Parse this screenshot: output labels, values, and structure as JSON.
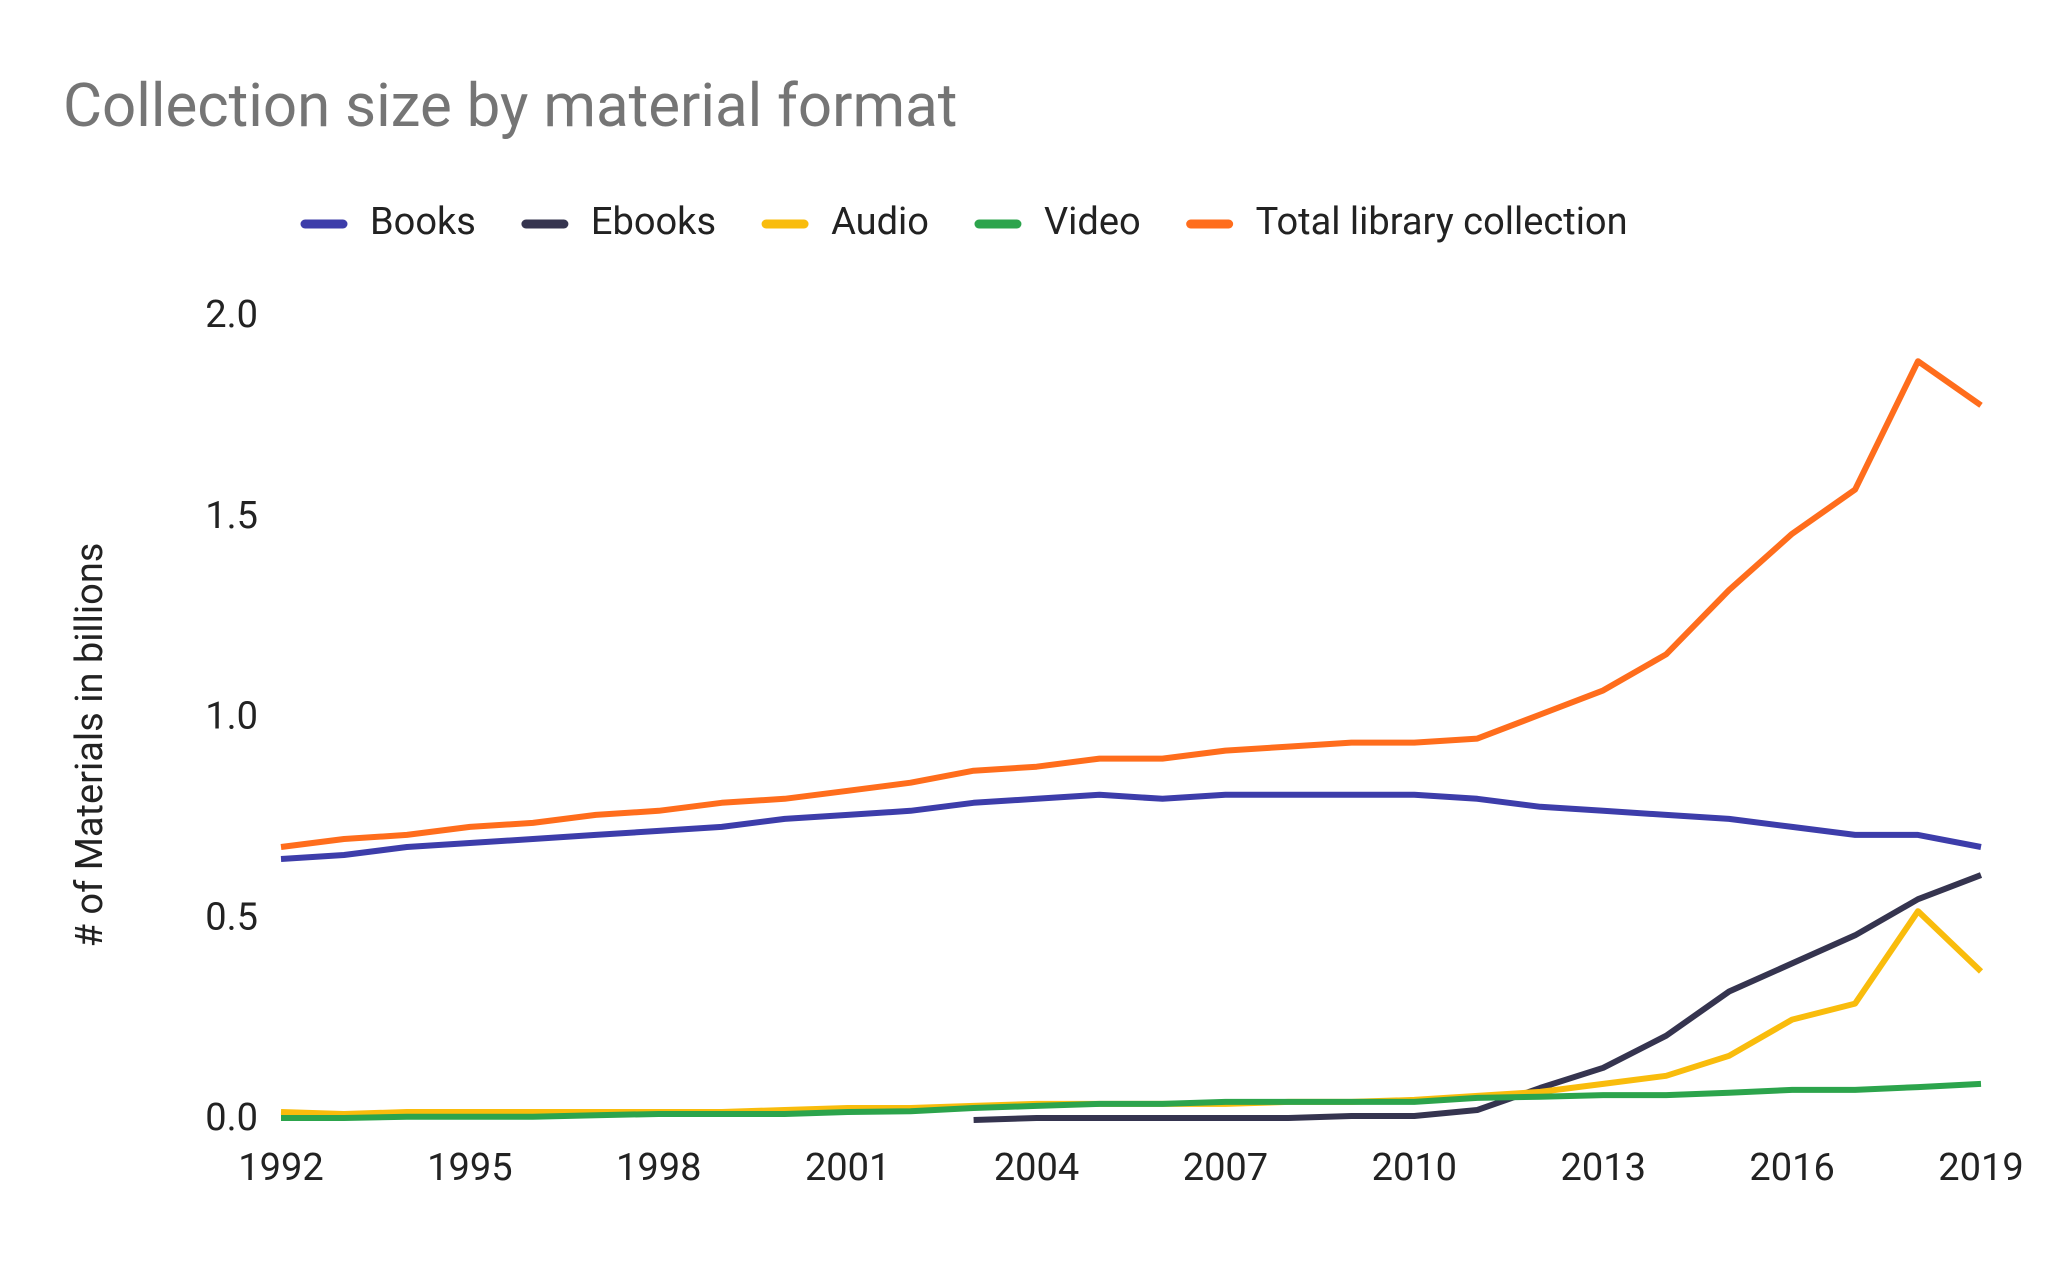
{
  "chart_data": {
    "type": "line",
    "title": "Collection size by material format",
    "y_label": "# of Materials in billions",
    "x": [
      1992,
      1993,
      1994,
      1995,
      1996,
      1997,
      1998,
      1999,
      2000,
      2001,
      2002,
      2003,
      2004,
      2005,
      2006,
      2007,
      2008,
      2009,
      2010,
      2011,
      2012,
      2013,
      2014,
      2015,
      2016,
      2017,
      2018,
      2019
    ],
    "xlim": [
      1992,
      2019
    ],
    "xticks": [
      1992,
      1995,
      1998,
      2001,
      2004,
      2007,
      2010,
      2013,
      2016,
      2019
    ],
    "ylim": [
      0,
      2
    ],
    "yticks": [
      {
        "value": 0,
        "label": "0.0"
      },
      0.5,
      {
        "value": 1,
        "label": "1.0"
      },
      1.5,
      {
        "value": 2,
        "label": "2.0"
      }
    ],
    "grid": false,
    "legend": "top",
    "series": [
      {
        "name": "Books",
        "color": "#3d3daa",
        "values": [
          0.65,
          0.66,
          0.68,
          0.69,
          0.7,
          0.71,
          0.72,
          0.73,
          0.75,
          0.76,
          0.77,
          0.79,
          0.8,
          0.81,
          0.8,
          0.81,
          0.81,
          0.81,
          0.81,
          0.8,
          0.78,
          0.77,
          0.76,
          0.75,
          0.73,
          0.71,
          0.71,
          0.68
        ]
      },
      {
        "name": "Ebooks",
        "color": "#35344f",
        "values": [
          null,
          null,
          null,
          null,
          null,
          null,
          null,
          null,
          null,
          null,
          null,
          0.0,
          0.005,
          0.005,
          0.005,
          0.005,
          0.005,
          0.01,
          0.01,
          0.025,
          0.08,
          0.13,
          0.21,
          0.32,
          0.39,
          0.46,
          0.55,
          0.61
        ]
      },
      {
        "name": "Audio",
        "color": "#f9bc0c",
        "values": [
          0.02,
          0.015,
          0.02,
          0.02,
          0.02,
          0.02,
          0.02,
          0.02,
          0.025,
          0.03,
          0.03,
          0.035,
          0.04,
          0.04,
          0.04,
          0.04,
          0.045,
          0.045,
          0.05,
          0.06,
          0.07,
          0.09,
          0.11,
          0.16,
          0.25,
          0.29,
          0.52,
          0.37
        ]
      },
      {
        "name": "Video",
        "color": "#2ca44c",
        "values": [
          0.005,
          0.005,
          0.008,
          0.008,
          0.008,
          0.012,
          0.015,
          0.015,
          0.015,
          0.02,
          0.022,
          0.03,
          0.035,
          0.04,
          0.04,
          0.045,
          0.045,
          0.045,
          0.045,
          0.055,
          0.058,
          0.062,
          0.062,
          0.068,
          0.075,
          0.075,
          0.082,
          0.09
        ]
      },
      {
        "name": "Total library collection",
        "color": "#ff6d1c",
        "values": [
          0.68,
          0.7,
          0.71,
          0.73,
          0.74,
          0.76,
          0.77,
          0.79,
          0.8,
          0.82,
          0.84,
          0.87,
          0.88,
          0.9,
          0.9,
          0.92,
          0.93,
          0.94,
          0.94,
          0.95,
          1.01,
          1.07,
          1.16,
          1.32,
          1.46,
          1.57,
          1.89,
          1.78
        ]
      }
    ]
  }
}
